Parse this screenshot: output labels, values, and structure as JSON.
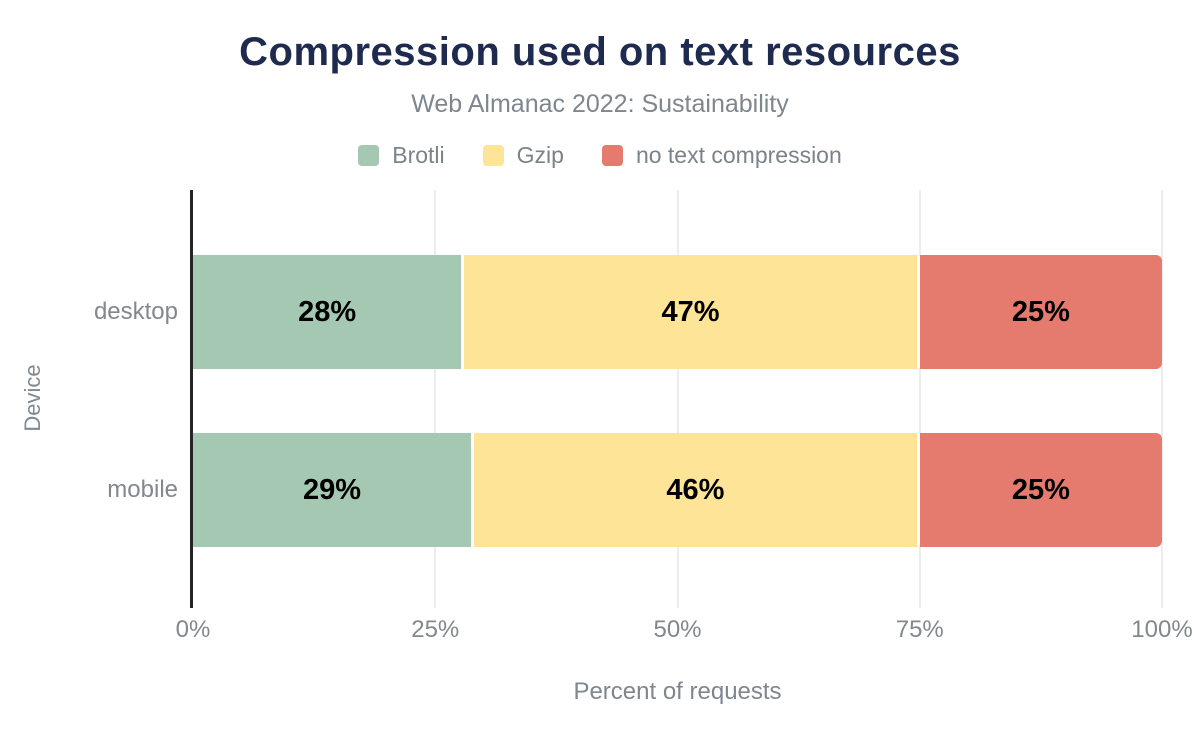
{
  "header": {
    "title": "Compression used on text resources",
    "subtitle": "Web Almanac 2022: Sustainability"
  },
  "chart_data": {
    "type": "bar",
    "orientation": "horizontal",
    "stacked": true,
    "title": "Compression used on text resources",
    "subtitle": "Web Almanac 2022: Sustainability",
    "categories": [
      "desktop",
      "mobile"
    ],
    "series": [
      {
        "name": "Brotli",
        "color": "#a4c8b2",
        "values": [
          28,
          29
        ]
      },
      {
        "name": "Gzip",
        "color": "#fde496",
        "values": [
          47,
          46
        ]
      },
      {
        "name": "no text compression",
        "color": "#e57a6e",
        "values": [
          25,
          25
        ]
      }
    ],
    "value_suffix": "%",
    "xlabel": "Percent of requests",
    "ylabel": "Device",
    "x_ticks": [
      "0%",
      "25%",
      "50%",
      "75%",
      "100%"
    ],
    "xlim": [
      0,
      100
    ],
    "grid": true,
    "legend_position": "top"
  },
  "colors": {
    "title": "#1e2b4e",
    "subtitle_text": "#7e868e",
    "axis_text": "#82888d",
    "gridline": "#ededed",
    "axis_line": "#262626",
    "bar_label": "#000000",
    "background": "#ffffff"
  }
}
